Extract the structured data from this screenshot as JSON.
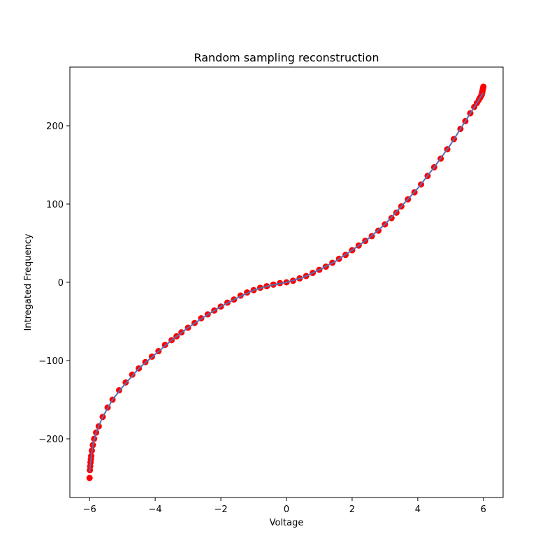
{
  "chart_data": {
    "type": "scatter",
    "title": "Random sampling reconstruction",
    "xlabel": "Voltage",
    "ylabel": "Intregated Frequency",
    "xlim": [
      -6.6,
      6.6
    ],
    "ylim": [
      -275,
      275
    ],
    "xticks": [
      -6,
      -4,
      -2,
      0,
      2,
      4,
      6
    ],
    "yticks": [
      -200,
      -100,
      0,
      100,
      200
    ],
    "grid": false,
    "legend": "none",
    "series": [
      {
        "kind": "scatter",
        "color": "#ff0000",
        "x": [
          -6.0,
          -5.99,
          -5.98,
          -5.97,
          -5.96,
          -5.95,
          -5.93,
          -5.9,
          -5.86,
          -5.8,
          -5.72,
          -5.6,
          -5.45,
          -5.3,
          -5.1,
          -4.9,
          -4.7,
          -4.5,
          -4.3,
          -4.1,
          -3.9,
          -3.7,
          -3.5,
          -3.35,
          -3.2,
          -3.0,
          -2.8,
          -2.6,
          -2.4,
          -2.2,
          -2.0,
          -1.8,
          -1.6,
          -1.4,
          -1.2,
          -1.0,
          -0.8,
          -0.6,
          -0.4,
          -0.2,
          0.0,
          0.2,
          0.4,
          0.6,
          0.8,
          1.0,
          1.2,
          1.4,
          1.6,
          1.8,
          2.0,
          2.2,
          2.4,
          2.6,
          2.8,
          3.0,
          3.2,
          3.35,
          3.5,
          3.7,
          3.9,
          4.1,
          4.3,
          4.5,
          4.7,
          4.9,
          5.1,
          5.3,
          5.45,
          5.6,
          5.72,
          5.8,
          5.86,
          5.9,
          5.93,
          5.95,
          5.96,
          5.97,
          5.98,
          5.99,
          6.0
        ],
        "y": [
          -250,
          -240,
          -235,
          -230,
          -226,
          -222,
          -215,
          -208,
          -200,
          -192,
          -184,
          -172,
          -160,
          -150,
          -138,
          -128,
          -118,
          -110,
          -102,
          -95,
          -88,
          -80,
          -74,
          -69,
          -64,
          -58,
          -52,
          -46,
          -41,
          -36,
          -31,
          -26,
          -22,
          -17,
          -13,
          -10,
          -7,
          -5,
          -3,
          -1,
          0,
          2,
          5,
          8,
          12,
          16,
          20,
          25,
          30,
          35,
          41,
          47,
          53,
          59,
          66,
          74,
          82,
          89,
          97,
          106,
          115,
          125,
          136,
          147,
          158,
          170,
          183,
          196,
          206,
          216,
          224,
          229,
          233,
          236,
          238,
          240,
          242,
          244,
          246,
          248,
          250
        ]
      },
      {
        "kind": "line",
        "color": "#5a6fb0",
        "x": [
          -6.0,
          -5.96,
          -5.9,
          -5.8,
          -5.6,
          -5.3,
          -5.0,
          -4.5,
          -4.0,
          -3.5,
          -3.0,
          -2.5,
          -2.0,
          -1.5,
          -1.0,
          -0.5,
          0.0,
          0.5,
          1.0,
          1.5,
          2.0,
          2.5,
          3.0,
          3.5,
          4.0,
          4.5,
          5.0,
          5.3,
          5.6,
          5.8,
          5.9,
          5.96,
          6.0
        ],
        "y": [
          -242,
          -226,
          -208,
          -192,
          -172,
          -150,
          -134,
          -110,
          -92,
          -74,
          -58,
          -44,
          -31,
          -20,
          -10,
          -4,
          0,
          6,
          16,
          27,
          41,
          56,
          74,
          97,
          120,
          147,
          176,
          196,
          216,
          229,
          236,
          240,
          242
        ]
      }
    ]
  }
}
